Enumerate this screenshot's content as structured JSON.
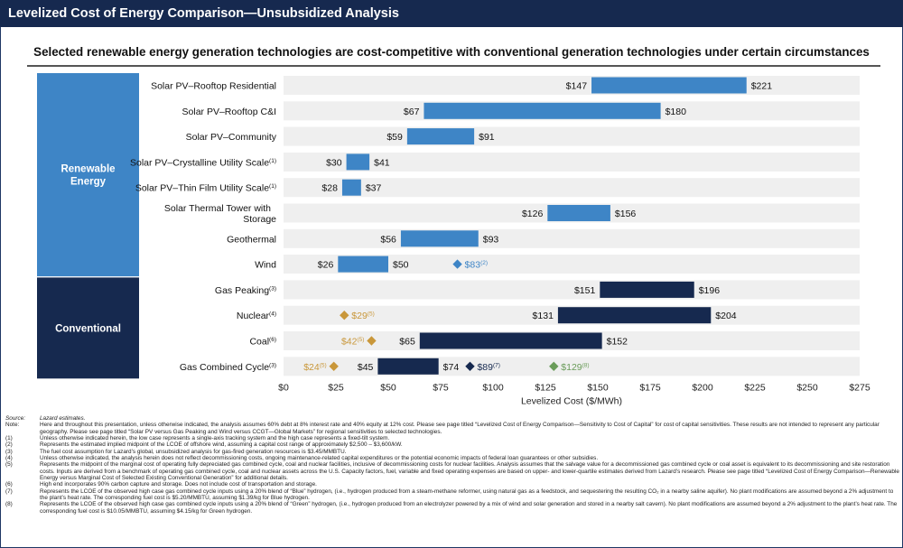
{
  "header": {
    "title": "Levelized Cost of Energy Comparison—Unsubsidized Analysis"
  },
  "subtitle": "Selected renewable energy generation technologies are cost-competitive with conventional generation technologies under certain circumstances",
  "colors": {
    "renewable": "#3e85c6",
    "conventional": "#16294f",
    "gold": "#c9973a",
    "green": "#6a9c5a",
    "row_band": "#efefef"
  },
  "groups": [
    {
      "id": "renewable",
      "label_lines": [
        "Renewable",
        "Energy"
      ],
      "first_row": 0,
      "last_row": 7
    },
    {
      "id": "conventional",
      "label_lines": [
        "Conventional"
      ],
      "first_row": 8,
      "last_row": 11
    }
  ],
  "chart_data": {
    "type": "bar",
    "orientation": "horizontal-floating",
    "xlabel": "Levelized Cost ($/MWh)",
    "xlim": [
      0,
      275
    ],
    "xticks": [
      0,
      25,
      50,
      75,
      100,
      125,
      150,
      175,
      200,
      225,
      250,
      275
    ],
    "xtick_labels": [
      "$0",
      "$25",
      "$50",
      "$75",
      "$100",
      "$125",
      "$150",
      "$175",
      "$200",
      "$225",
      "$250",
      "$275"
    ],
    "rows": [
      {
        "label_lines": [
          "Solar PV–Rooftop Residential"
        ],
        "sup": "",
        "group": "renewable",
        "low": 147,
        "high": 221,
        "low_label": "$147",
        "high_label": "$221",
        "markers": []
      },
      {
        "label_lines": [
          "Solar PV–Rooftop C&I"
        ],
        "sup": "",
        "group": "renewable",
        "low": 67,
        "high": 180,
        "low_label": "$67",
        "high_label": "$180",
        "markers": []
      },
      {
        "label_lines": [
          "Solar PV–Community"
        ],
        "sup": "",
        "group": "renewable",
        "low": 59,
        "high": 91,
        "low_label": "$59",
        "high_label": "$91",
        "markers": []
      },
      {
        "label_lines": [
          "Solar PV–Crystalline Utility Scale"
        ],
        "sup": "(1)",
        "group": "renewable",
        "low": 30,
        "high": 41,
        "low_label": "$30",
        "high_label": "$41",
        "markers": []
      },
      {
        "label_lines": [
          "Solar PV–Thin Film Utility Scale"
        ],
        "sup": "(1)",
        "group": "renewable",
        "low": 28,
        "high": 37,
        "low_label": "$28",
        "high_label": "$37",
        "markers": []
      },
      {
        "label_lines": [
          "Solar Thermal Tower with",
          "Storage"
        ],
        "sup": "",
        "group": "renewable",
        "low": 126,
        "high": 156,
        "low_label": "$126",
        "high_label": "$156",
        "markers": []
      },
      {
        "label_lines": [
          "Geothermal"
        ],
        "sup": "",
        "group": "renewable",
        "low": 56,
        "high": 93,
        "low_label": "$56",
        "high_label": "$93",
        "markers": []
      },
      {
        "label_lines": [
          "Wind"
        ],
        "sup": "",
        "group": "renewable",
        "low": 26,
        "high": 50,
        "low_label": "$26",
        "high_label": "$50",
        "markers": [
          {
            "value": 83,
            "label": "$83",
            "sup": "(2)",
            "color": "renewable",
            "side": "right"
          }
        ]
      },
      {
        "label_lines": [
          "Gas Peaking"
        ],
        "sup": "(3)",
        "group": "conventional",
        "low": 151,
        "high": 196,
        "low_label": "$151",
        "high_label": "$196",
        "markers": []
      },
      {
        "label_lines": [
          "Nuclear"
        ],
        "sup": "(4)",
        "group": "conventional",
        "low": 131,
        "high": 204,
        "low_label": "$131",
        "high_label": "$204",
        "markers": [
          {
            "value": 29,
            "label": "$29",
            "sup": "(5)",
            "color": "gold",
            "side": "right"
          }
        ]
      },
      {
        "label_lines": [
          "Coal"
        ],
        "sup": "(6)",
        "group": "conventional",
        "low": 65,
        "high": 152,
        "low_label": "$65",
        "high_label": "$152",
        "markers": [
          {
            "value": 42,
            "label": "$42",
            "sup": "(5)",
            "color": "gold",
            "side": "left"
          }
        ]
      },
      {
        "label_lines": [
          "Gas Combined Cycle"
        ],
        "sup": "(3)",
        "group": "conventional",
        "low": 45,
        "high": 74,
        "low_label": "$45",
        "high_label": "$74",
        "markers": [
          {
            "value": 24,
            "label": "$24",
            "sup": "(5)",
            "color": "gold",
            "side": "left"
          },
          {
            "value": 89,
            "label": "$89",
            "sup": "(7)",
            "color": "conventional",
            "side": "right"
          },
          {
            "value": 129,
            "label": "$129",
            "sup": "(8)",
            "color": "green",
            "side": "right"
          }
        ]
      }
    ]
  },
  "notes": [
    {
      "key": "Source:",
      "text": "Lazard estimates.",
      "italic": true
    },
    {
      "key": "Note:",
      "text": "Here and throughout this presentation, unless otherwise indicated, the analysis assumes 60% debt at 8% interest rate and 40% equity at 12% cost. Please see page titled “Levelized Cost of Energy Comparison—Sensitivity to Cost of Capital” for cost of capital sensitivities. These results are not intended to represent any particular geography. Please see page titled “Solar PV versus Gas Peaking and Wind versus CCGT—Global Markets” for regional sensitivities to selected technologies.",
      "italic": false
    },
    {
      "key": "(1)",
      "text": "Unless otherwise indicated herein, the low case represents a single-axis tracking system and the high case represents a fixed-tilt system.",
      "italic": false
    },
    {
      "key": "(2)",
      "text": "Represents the estimated implied midpoint of the LCOE of offshore wind, assuming a capital cost range of approximately $2,500 – $3,600/kW.",
      "italic": false
    },
    {
      "key": "(3)",
      "text": "The fuel cost assumption for Lazard’s global, unsubsidized analysis for gas-fired generation resources is $3.45/MMBTU.",
      "italic": false
    },
    {
      "key": "(4)",
      "text": "Unless otherwise indicated, the analysis herein does not reflect decommissioning costs, ongoing maintenance-related capital expenditures or the potential economic impacts of federal loan guarantees or other subsidies.",
      "italic": false
    },
    {
      "key": "(5)",
      "text": "Represents the midpoint of the marginal cost of operating fully depreciated gas combined cycle, coal and nuclear facilities, inclusive of decommissioning costs for nuclear facilities. Analysis assumes that the salvage value for a decommissioned gas combined cycle or coal asset is equivalent to its decommissioning and site restoration costs. Inputs are derived from a benchmark of operating gas combined cycle, coal and nuclear assets across the U.S. Capacity factors, fuel, variable and fixed operating expenses are based on upper- and lower-quartile estimates derived from Lazard’s research. Please see page titled “Levelized Cost of Energy Comparison—Renewable Energy versus Marginal Cost of Selected Existing Conventional Generation” for additional details.",
      "italic": false
    },
    {
      "key": "(6)",
      "text": "High end incorporates 90% carbon capture and storage. Does not include cost of transportation and storage.",
      "italic": false
    },
    {
      "key": "(7)",
      "text": "Represents the LCOE of the observed high case gas combined cycle inputs using a 20% blend of “Blue” hydrogen, (i.e., hydrogen produced from a steam-methane reformer, using natural gas as a feedstock, and sequestering the resulting CO₂ in a nearby saline aquifer). No plant modifications are assumed beyond a 2% adjustment to the plant’s heat rate. The corresponding fuel cost is $5.20/MMBTU, assuming $1.39/kg for Blue hydrogen.",
      "italic": false
    },
    {
      "key": "(8)",
      "text": "Represents the LCOE of the observed high case gas combined cycle inputs using a 20% blend of “Green” hydrogen, (i.e., hydrogen produced from an electrolyzer powered by a mix of wind and solar generation and stored in a nearby salt cavern). No plant modifications are assumed beyond a 2% adjustment to the plant’s heat rate. The corresponding fuel cost is $10.05/MMBTU, assuming $4.15/kg for Green hydrogen.",
      "italic": false
    }
  ]
}
